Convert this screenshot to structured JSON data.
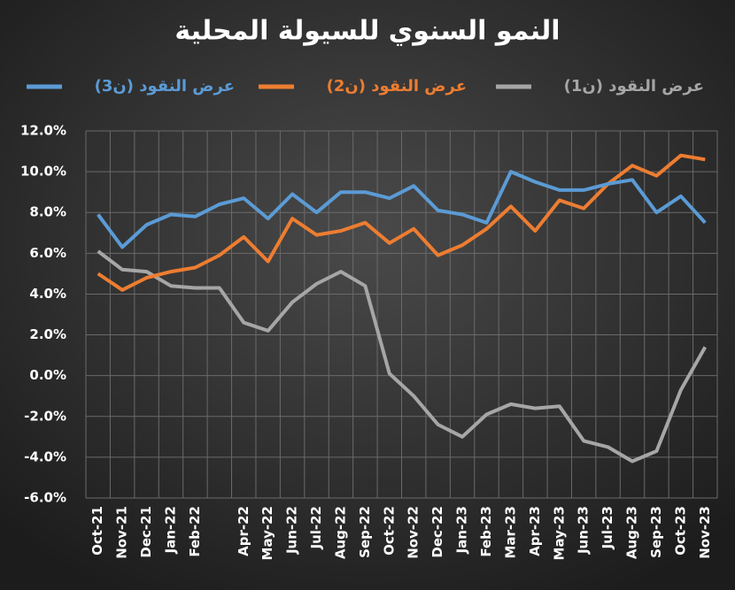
{
  "chart_data": {
    "type": "line",
    "title": "النمو السنوي للسيولة المحلية",
    "categories": [
      "Oct-21",
      "Nov-21",
      "Dec-21",
      "Jan-22",
      "Feb-22",
      null,
      "Apr-22",
      "May-22",
      "Jun-22",
      "Jul-22",
      "Aug-22",
      "Sep-22",
      "Oct-22",
      "Nov-22",
      "Dec-22",
      "Jan-23",
      "Feb-23",
      "Mar-23",
      "Apr-23",
      "May-23",
      "Jun-23",
      "Jul-23",
      "Aug-23",
      "Sep-23",
      "Oct-23",
      "Nov-23"
    ],
    "series": [
      {
        "name": "عرض النقود (ن1)",
        "color": "#a6a6a6",
        "values": [
          6.1,
          5.2,
          5.1,
          4.4,
          4.3,
          4.3,
          2.6,
          2.2,
          3.6,
          4.5,
          5.1,
          4.4,
          0.1,
          -1.0,
          -2.4,
          -3.0,
          -1.9,
          -1.4,
          -1.6,
          -1.5,
          -3.2,
          -3.5,
          -4.2,
          -3.7,
          -0.7,
          1.4
        ]
      },
      {
        "name": "عرض النقود (ن2)",
        "color": "#ed7d31",
        "values": [
          5.0,
          4.2,
          4.8,
          5.1,
          5.3,
          5.9,
          6.8,
          5.6,
          7.7,
          6.9,
          7.1,
          7.5,
          6.5,
          7.2,
          5.9,
          6.4,
          7.2,
          8.3,
          7.1,
          8.6,
          8.2,
          9.4,
          10.3,
          9.8,
          10.8,
          10.6
        ]
      },
      {
        "name": "عرض النقود (ن3)",
        "color": "#5b9bd5",
        "values": [
          7.9,
          6.3,
          7.4,
          7.9,
          7.8,
          8.4,
          8.7,
          7.7,
          8.9,
          8.0,
          9.0,
          9.0,
          8.7,
          9.3,
          8.1,
          7.9,
          7.5,
          10.0,
          9.5,
          9.1,
          9.1,
          9.4,
          9.6,
          8.0,
          8.8,
          7.5
        ]
      }
    ],
    "ylim": [
      -6,
      12
    ],
    "yticks": [
      {
        "value": -6,
        "label": "-6.0%"
      },
      {
        "value": -4,
        "label": "-4.0%"
      },
      {
        "value": -2,
        "label": "-2.0%"
      },
      {
        "value": 0,
        "label": "0.0%"
      },
      {
        "value": 2,
        "label": "2.0%"
      },
      {
        "value": 4,
        "label": "4.0%"
      },
      {
        "value": 6,
        "label": "6.0%"
      },
      {
        "value": 8,
        "label": "8.0%"
      },
      {
        "value": 10,
        "label": "10.0%"
      },
      {
        "value": 12,
        "label": "12.0%"
      }
    ],
    "grid": true
  }
}
